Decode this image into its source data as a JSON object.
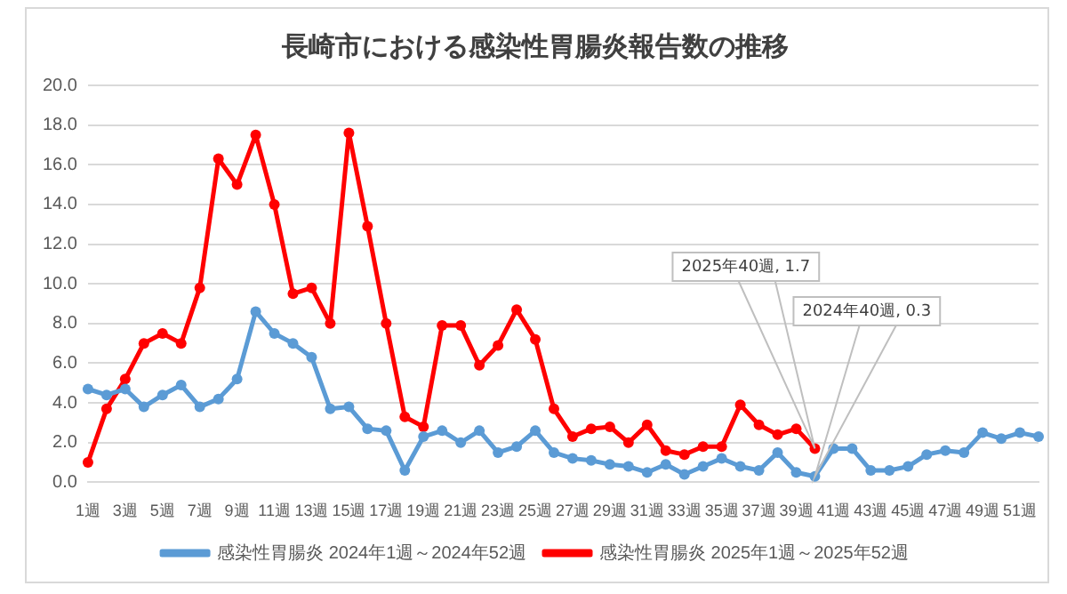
{
  "chart_data": {
    "type": "line",
    "title": "長崎市における感染性胃腸炎報告数の推移",
    "categories": [
      "1週",
      null,
      "3週",
      null,
      "5週",
      null,
      "7週",
      null,
      "9週",
      null,
      "11週",
      null,
      "13週",
      null,
      "15週",
      null,
      "17週",
      null,
      "19週",
      null,
      "21週",
      null,
      "23週",
      null,
      "25週",
      null,
      "27週",
      null,
      "29週",
      null,
      "31週",
      null,
      "33週",
      null,
      "35週",
      null,
      "37週",
      null,
      "39週",
      null,
      "41週",
      null,
      "43週",
      null,
      "45週",
      null,
      "47週",
      null,
      "49週",
      null,
      "51週",
      null
    ],
    "series": [
      {
        "name": "感染性胃腸炎 2024年1週～2024年52週",
        "color": "#5b9bd5",
        "values": [
          4.7,
          4.4,
          4.7,
          3.8,
          4.4,
          4.9,
          3.8,
          4.2,
          5.2,
          8.6,
          7.5,
          7.0,
          6.3,
          3.7,
          3.8,
          2.7,
          2.6,
          0.6,
          2.3,
          2.6,
          2.0,
          2.6,
          1.5,
          1.8,
          2.6,
          1.5,
          1.2,
          1.1,
          0.9,
          0.8,
          0.5,
          0.9,
          0.4,
          0.8,
          1.2,
          0.8,
          0.6,
          1.5,
          0.5,
          0.3,
          1.7,
          1.7,
          0.6,
          0.6,
          0.8,
          1.4,
          1.6,
          1.5,
          2.5,
          2.2,
          2.5,
          2.3
        ]
      },
      {
        "name": "感染性胃腸炎 2025年1週～2025年52週",
        "color": "#ff0000",
        "values": [
          1.0,
          3.7,
          5.2,
          7.0,
          7.5,
          7.0,
          9.8,
          16.3,
          15.0,
          17.5,
          14.0,
          9.5,
          9.8,
          8.0,
          17.6,
          12.9,
          8.0,
          3.3,
          2.8,
          7.9,
          7.9,
          5.9,
          6.9,
          8.7,
          7.2,
          3.7,
          2.3,
          2.7,
          2.8,
          2.0,
          2.9,
          1.6,
          1.4,
          1.8,
          1.8,
          3.9,
          2.9,
          2.4,
          2.7,
          1.7,
          null,
          null,
          null,
          null,
          null,
          null,
          null,
          null,
          null,
          null,
          null,
          null
        ]
      }
    ],
    "ylim": [
      0,
      20
    ],
    "yticks": [
      {
        "value": 0,
        "label": "0.0"
      },
      {
        "value": 2,
        "label": "2.0"
      },
      {
        "value": 4,
        "label": "4.0"
      },
      {
        "value": 6,
        "label": "6.0"
      },
      {
        "value": 8,
        "label": "8.0"
      },
      {
        "value": 10,
        "label": "10.0"
      },
      {
        "value": 12,
        "label": "12.0"
      },
      {
        "value": 14,
        "label": "14.0"
      },
      {
        "value": 16,
        "label": "16.0"
      },
      {
        "value": 18,
        "label": "18.0"
      },
      {
        "value": 20,
        "label": "20.0"
      }
    ],
    "annotations": [
      "2025年40週, 1.7",
      "2024年40週, 0.3"
    ],
    "grid": "y",
    "legend": "bottom",
    "marker": "circle",
    "line_style": "solid"
  }
}
